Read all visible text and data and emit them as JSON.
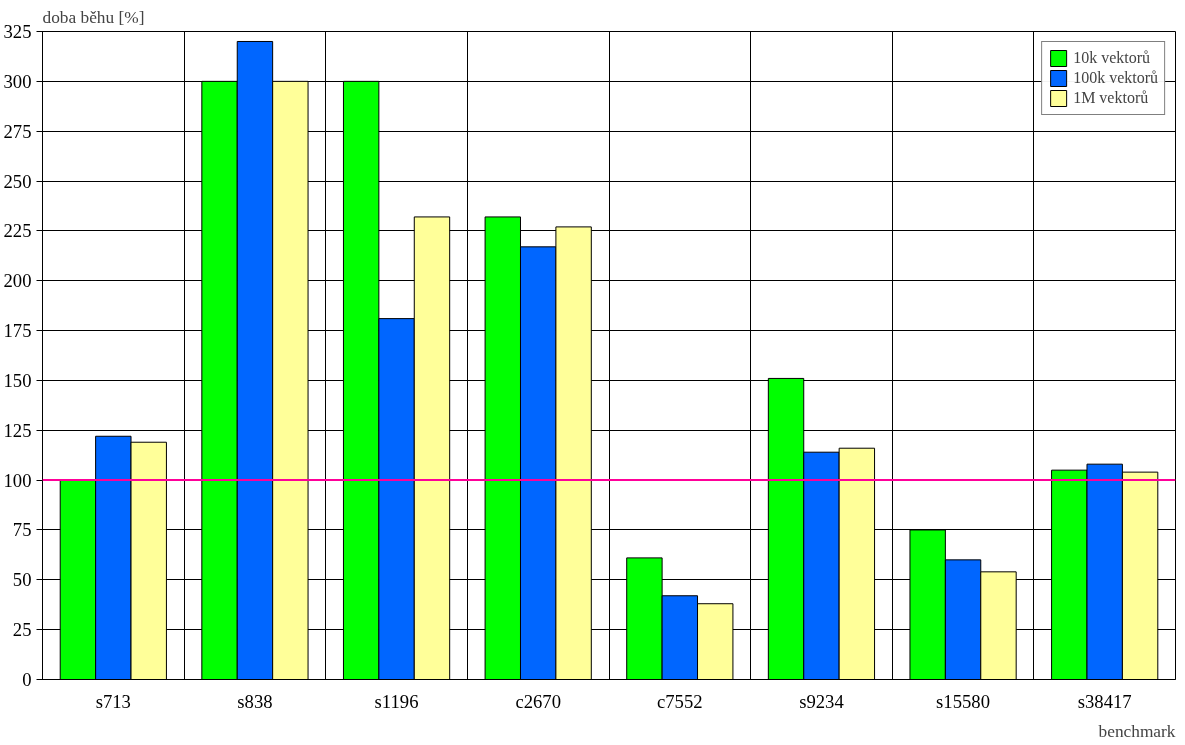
{
  "chart_data": {
    "type": "bar",
    "xlabel": "benchmark",
    "ylabel": "doba běhu [%]",
    "categories": [
      "s713",
      "s838",
      "s1196",
      "c2670",
      "c7552",
      "s9234",
      "s15580",
      "s38417"
    ],
    "series": [
      {
        "name": "10k vektorů",
        "color": "#00ff00",
        "values": [
          100,
          300,
          300,
          232,
          61,
          151,
          75,
          105
        ]
      },
      {
        "name": "100k vektorů",
        "color": "#0066ff",
        "values": [
          122,
          320,
          181,
          217,
          42,
          114,
          60,
          108
        ]
      },
      {
        "name": "1M vektorů",
        "color": "#ffff99",
        "values": [
          119,
          300,
          232,
          227,
          38,
          116,
          54,
          104
        ]
      }
    ],
    "ylim": [
      0,
      325
    ],
    "yticks": [
      0,
      25,
      50,
      75,
      100,
      125,
      150,
      175,
      200,
      225,
      250,
      275,
      300,
      325
    ],
    "ref_lines": [
      {
        "axis": "y",
        "value": 100,
        "color": "#ff0099"
      }
    ],
    "grid": true,
    "legend": "top right"
  }
}
